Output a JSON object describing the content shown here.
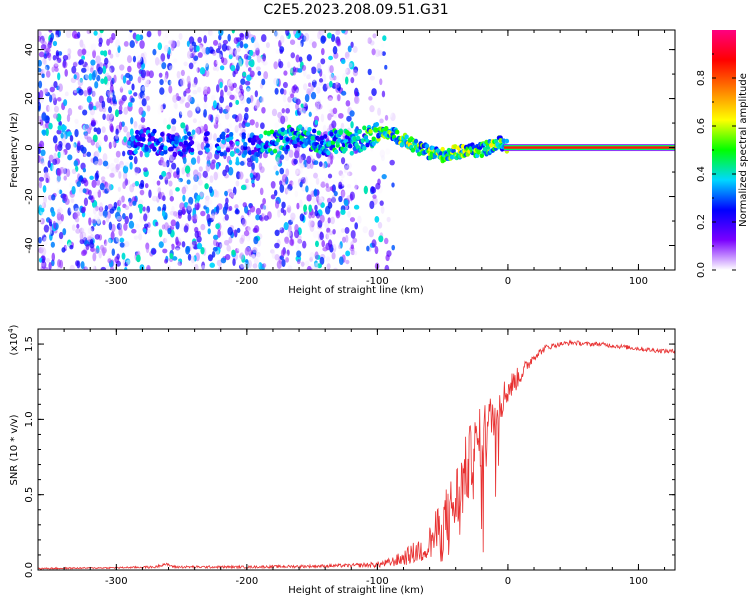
{
  "title": "C2E5.2023.208.09.51.G31",
  "chart_data": [
    {
      "type": "heatmap",
      "xlabel": "Height of straight line (km)",
      "ylabel": "Frequency (Hz)",
      "xlim": [
        -360,
        128
      ],
      "ylim": [
        -50,
        48
      ],
      "x_ticks": [
        -300,
        -200,
        -100,
        0,
        100
      ],
      "y_ticks": [
        -40,
        -20,
        0,
        20,
        40
      ],
      "colorbar": {
        "label": "Normalized spectral amplitude",
        "range": [
          0.0,
          1.0
        ],
        "ticks": [
          0.0,
          0.2,
          0.4,
          0.6,
          0.8
        ],
        "colors": [
          "#ffffff",
          "#7a00ff",
          "#0000ff",
          "#00d8ff",
          "#00ff00",
          "#ffff00",
          "#ff8000",
          "#ff0000",
          "#ff0080"
        ]
      },
      "noise_extent_km": [
        -360,
        -85
      ],
      "ridge_center": {
        "x": [
          -285,
          -275,
          -265,
          -250,
          -225,
          -200,
          -180,
          -165,
          -150,
          -140,
          -130,
          -120,
          -110,
          -100,
          -90,
          -80,
          -70,
          -60,
          -50,
          -40,
          -30,
          -20,
          -10,
          -5,
          0,
          128
        ],
        "y": [
          2,
          3,
          1,
          1,
          2,
          1,
          2,
          5,
          3,
          1,
          3,
          2,
          4,
          5,
          6,
          3,
          0,
          -2,
          -3,
          -2,
          -1,
          -1,
          1,
          2,
          0,
          0
        ]
      }
    },
    {
      "type": "line",
      "xlabel": "Height of straight line (km)",
      "ylabel": "SNR (10 * v/v)",
      "y_multiplier": "(x10",
      "y_multiplier_exp": "4",
      "y_multiplier_close": ")",
      "xlim": [
        -360,
        128
      ],
      "ylim": [
        0,
        1.6
      ],
      "x_ticks": [
        -300,
        -200,
        -100,
        0,
        100
      ],
      "y_ticks": [
        0.0,
        0.5,
        1.0,
        1.5
      ],
      "y_tick_labels": [
        "0.0",
        "0.5",
        "1.0",
        "1.5"
      ],
      "line_color": "#e83030",
      "series": [
        {
          "x": [
            -360,
            -300,
            -270,
            -263,
            -255,
            -200,
            -150,
            -120,
            -100,
            -90,
            -80,
            -70,
            -60,
            -50,
            -40,
            -30,
            -20,
            -10,
            0,
            10,
            20,
            30,
            40,
            50,
            60,
            70,
            80,
            90,
            100,
            110,
            128
          ],
          "values": [
            0.01,
            0.015,
            0.02,
            0.04,
            0.02,
            0.02,
            0.025,
            0.03,
            0.035,
            0.05,
            0.08,
            0.12,
            0.18,
            0.3,
            0.45,
            0.7,
            0.9,
            1.05,
            1.2,
            1.3,
            1.42,
            1.48,
            1.5,
            1.51,
            1.5,
            1.5,
            1.49,
            1.48,
            1.47,
            1.46,
            1.45
          ],
          "noise": [
            0.005,
            0.005,
            0.008,
            0.01,
            0.008,
            0.008,
            0.01,
            0.012,
            0.02,
            0.03,
            0.05,
            0.08,
            0.12,
            0.2,
            0.25,
            0.25,
            0.2,
            0.15,
            0.1,
            0.06,
            0.03,
            0.02,
            0.015,
            0.015,
            0.015,
            0.015,
            0.015,
            0.015,
            0.015,
            0.015,
            0.015
          ]
        }
      ]
    }
  ]
}
